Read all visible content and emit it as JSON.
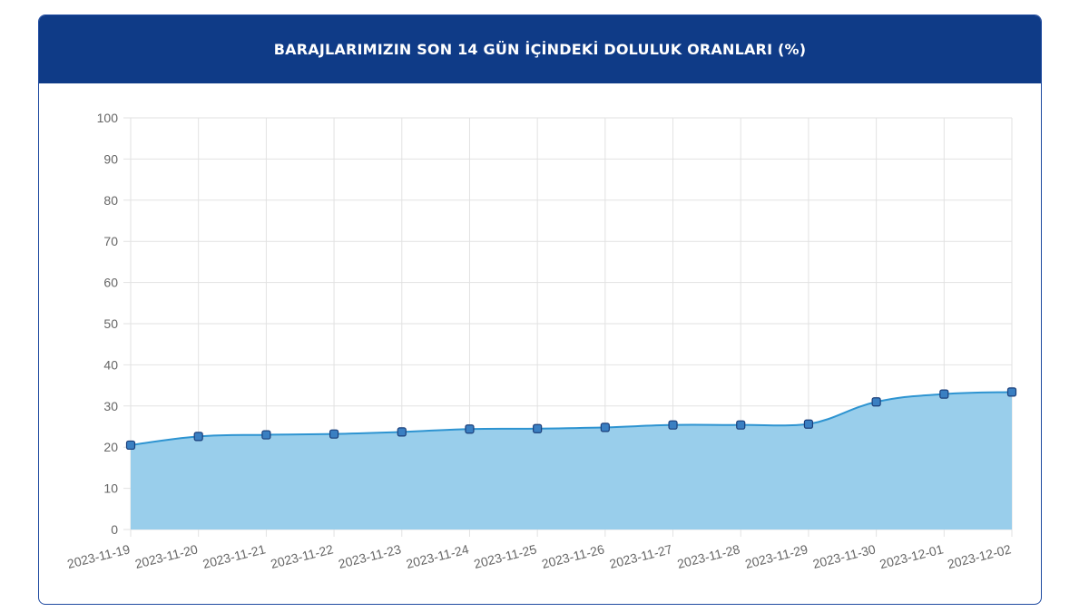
{
  "header": {
    "title": "BARAJLARIMIZIN SON 14 GÜN İÇİNDEKİ DOLULUK ORANLARI (%)"
  },
  "colors": {
    "header_bg": "#0f3b87",
    "line": "#2e94d1",
    "fill": "#99ceeb",
    "marker_fill": "#3a7fc2",
    "marker_stroke": "#1b3f7a",
    "grid": "#e2e2e2",
    "tick_text": "#666666"
  },
  "chart_data": {
    "type": "area",
    "title": "BARAJLARIMIZIN SON 14 GÜN İÇİNDEKİ DOLULUK ORANLARI (%)",
    "xlabel": "",
    "ylabel": "",
    "ylim": [
      0,
      100
    ],
    "yticks": [
      0,
      10,
      20,
      30,
      40,
      50,
      60,
      70,
      80,
      90,
      100
    ],
    "grid": true,
    "legend": "none",
    "categories": [
      "2023-11-19",
      "2023-11-20",
      "2023-11-21",
      "2023-11-22",
      "2023-11-23",
      "2023-11-24",
      "2023-11-25",
      "2023-11-26",
      "2023-11-27",
      "2023-11-28",
      "2023-11-29",
      "2023-11-30",
      "2023-12-01",
      "2023-12-02"
    ],
    "values": [
      20.5,
      22.6,
      23.0,
      23.2,
      23.7,
      24.4,
      24.5,
      24.8,
      25.4,
      25.4,
      25.6,
      31.0,
      32.9,
      33.4
    ]
  }
}
